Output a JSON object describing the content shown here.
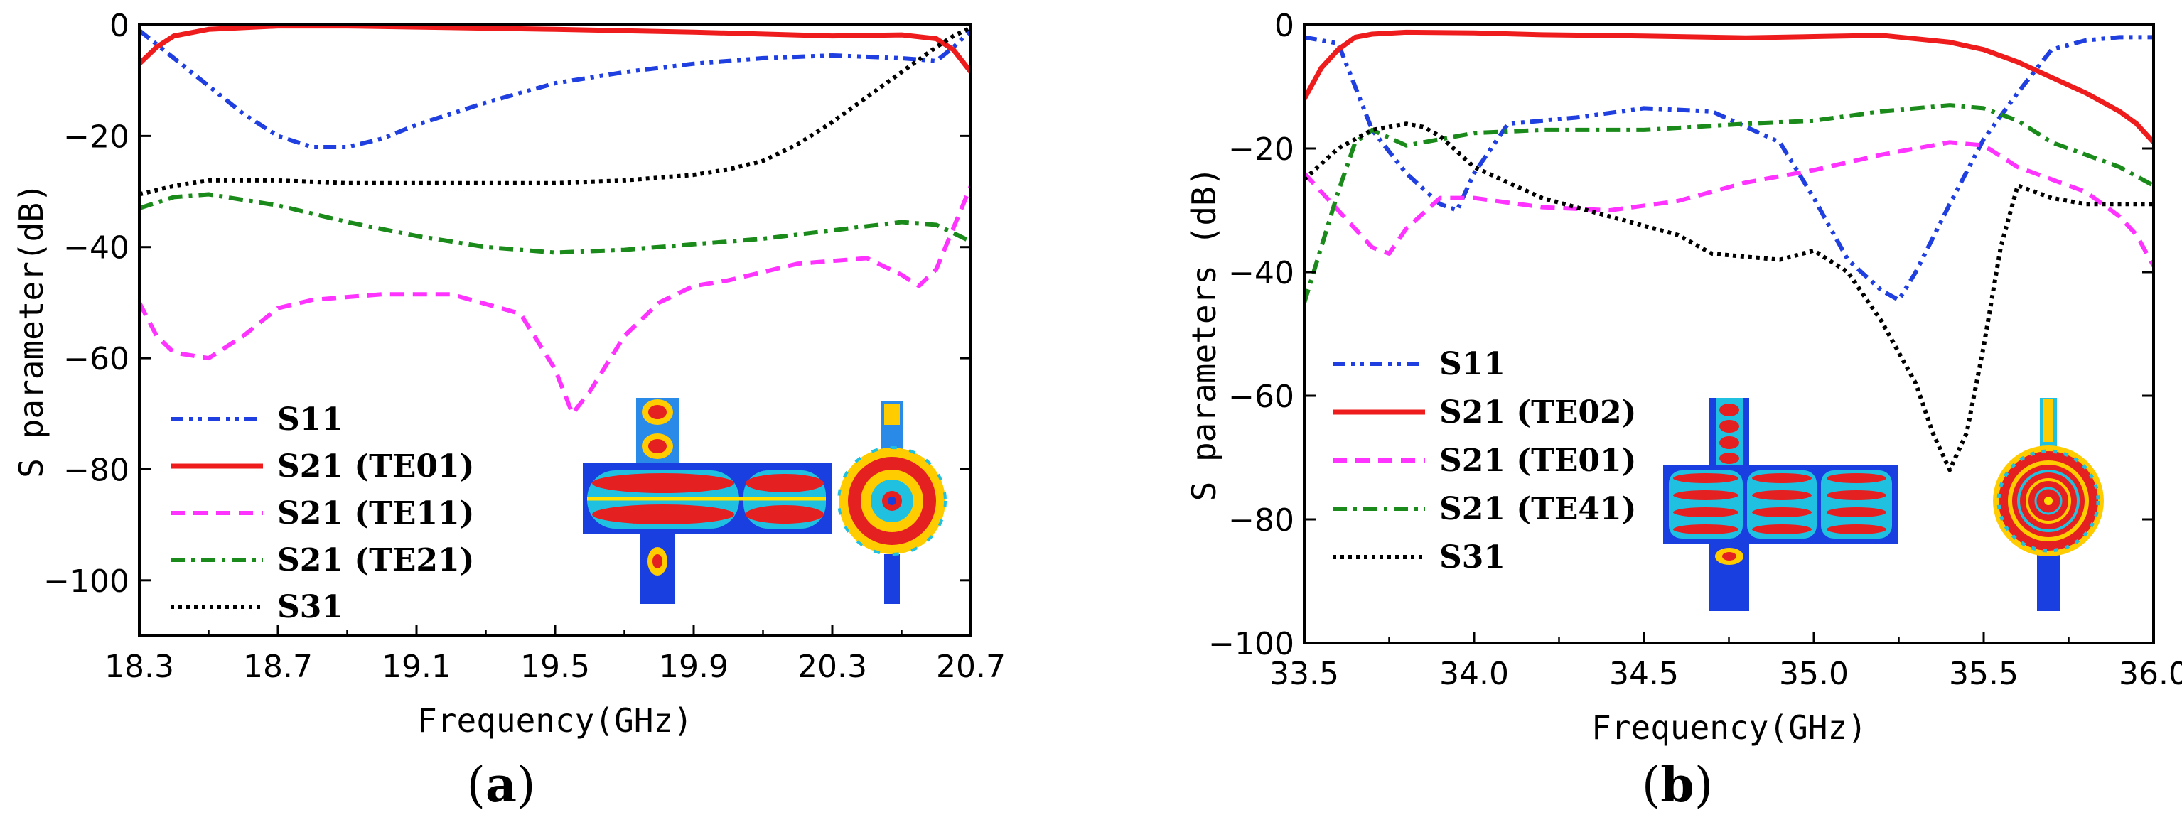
{
  "chart_data": [
    {
      "type": "line",
      "panel_label": "a",
      "xlabel": "Frequency(GHz)",
      "ylabel": "S parameter(dB)",
      "xlim": [
        18.3,
        20.7
      ],
      "ylim": [
        -110,
        0
      ],
      "xticks": [
        18.3,
        18.7,
        19.1,
        19.5,
        19.9,
        20.3,
        20.7
      ],
      "xtick_labels": [
        "18.3",
        "18.7",
        "19.1",
        "19.5",
        "19.9",
        "20.3",
        "20.7"
      ],
      "yticks": [
        0,
        -20,
        -40,
        -60,
        -80,
        -100
      ],
      "ytick_labels": [
        "0",
        "−20",
        "−40",
        "−60",
        "−80",
        "−100"
      ],
      "legend_position": "bottom-left",
      "series": [
        {
          "name": "S11",
          "color": "#1f3fe0",
          "dash": "dotdotdash",
          "x": [
            18.3,
            18.4,
            18.5,
            18.6,
            18.7,
            18.8,
            18.9,
            19.0,
            19.1,
            19.3,
            19.5,
            19.7,
            19.9,
            20.1,
            20.3,
            20.5,
            20.6,
            20.65,
            20.7
          ],
          "y": [
            -1,
            -6,
            -11,
            -16,
            -20,
            -22,
            -22,
            -20.5,
            -18,
            -14,
            -10.5,
            -8.5,
            -7,
            -6,
            -5.5,
            -6,
            -6.5,
            -4,
            -1
          ]
        },
        {
          "name": "S21 (TE01)",
          "color": "#ee1c1c",
          "dash": "solid",
          "x": [
            18.3,
            18.35,
            18.4,
            18.5,
            18.7,
            18.9,
            19.1,
            19.5,
            19.9,
            20.3,
            20.5,
            20.6,
            20.65,
            20.7
          ],
          "y": [
            -7,
            -4,
            -2,
            -0.8,
            -0.2,
            -0.2,
            -0.4,
            -0.8,
            -1.3,
            -2,
            -1.8,
            -2.5,
            -4.5,
            -8.5
          ]
        },
        {
          "name": "S21 (TE11)",
          "color": "#ff33ff",
          "dash": "dash",
          "x": [
            18.3,
            18.35,
            18.4,
            18.5,
            18.6,
            18.7,
            18.8,
            19.0,
            19.2,
            19.4,
            19.5,
            19.55,
            19.6,
            19.7,
            19.8,
            19.9,
            20.0,
            20.2,
            20.4,
            20.5,
            20.55,
            20.6,
            20.7
          ],
          "y": [
            -50,
            -56,
            -59,
            -60,
            -56,
            -51,
            -49.5,
            -48.5,
            -48.5,
            -52,
            -62,
            -70,
            -66,
            -56,
            -50,
            -47,
            -46,
            -43,
            -42,
            -45,
            -47,
            -44,
            -29
          ]
        },
        {
          "name": "S21 (TE21)",
          "color": "#1a8a1a",
          "dash": "dashdot",
          "x": [
            18.3,
            18.4,
            18.5,
            18.7,
            18.9,
            19.1,
            19.3,
            19.5,
            19.7,
            19.9,
            20.1,
            20.3,
            20.5,
            20.6,
            20.7
          ],
          "y": [
            -33,
            -31,
            -30.5,
            -32.5,
            -35.5,
            -38,
            -40,
            -41,
            -40.5,
            -39.5,
            -38.5,
            -37,
            -35.5,
            -36,
            -39
          ]
        },
        {
          "name": "S31",
          "color": "#000000",
          "dash": "dot",
          "x": [
            18.3,
            18.4,
            18.5,
            18.7,
            18.9,
            19.1,
            19.3,
            19.5,
            19.7,
            19.9,
            20.0,
            20.1,
            20.2,
            20.3,
            20.4,
            20.5,
            20.6,
            20.65,
            20.7
          ],
          "y": [
            -30.5,
            -29,
            -28,
            -28,
            -28.5,
            -28.5,
            -28.5,
            -28.5,
            -28,
            -27,
            -26,
            -24.5,
            -21.5,
            -17.5,
            -13,
            -8.5,
            -4,
            -2,
            -0.5
          ]
        }
      ]
    },
    {
      "type": "line",
      "panel_label": "b",
      "xlabel": "Frequency(GHz)",
      "ylabel": "S parameters (dB)",
      "xlim": [
        33.5,
        36.0
      ],
      "ylim": [
        -100,
        0
      ],
      "xticks": [
        33.5,
        34.0,
        34.5,
        35.0,
        35.5,
        36.0
      ],
      "xtick_labels": [
        "33.5",
        "34.0",
        "34.5",
        "35.0",
        "35.5",
        "36.0"
      ],
      "yticks": [
        0,
        -20,
        -40,
        -60,
        -80,
        -100
      ],
      "ytick_labels": [
        "0",
        "−20",
        "−40",
        "−60",
        "−80",
        "−100"
      ],
      "legend_position": "bottom-left",
      "series": [
        {
          "name": "S11",
          "color": "#1f3fe0",
          "dash": "dotdotdash",
          "x": [
            33.5,
            33.6,
            33.65,
            33.7,
            33.8,
            33.9,
            33.95,
            34.0,
            34.1,
            34.3,
            34.5,
            34.7,
            34.9,
            35.0,
            35.1,
            35.2,
            35.25,
            35.3,
            35.4,
            35.5,
            35.6,
            35.7,
            35.8,
            35.9,
            36.0
          ],
          "y": [
            -2,
            -3,
            -10,
            -17,
            -24,
            -29,
            -30,
            -24,
            -16,
            -15,
            -13.5,
            -14,
            -19,
            -28,
            -38,
            -43,
            -44.5,
            -40,
            -29,
            -18.5,
            -11,
            -4,
            -2.5,
            -2,
            -2
          ]
        },
        {
          "name": "S21 (TE02)",
          "color": "#ee1c1c",
          "dash": "solid",
          "x": [
            33.5,
            33.55,
            33.6,
            33.65,
            33.7,
            33.8,
            34.0,
            34.2,
            34.5,
            34.8,
            35.0,
            35.2,
            35.4,
            35.5,
            35.6,
            35.7,
            35.8,
            35.9,
            35.95,
            36.0
          ],
          "y": [
            -12,
            -7,
            -4,
            -2,
            -1.5,
            -1.2,
            -1.3,
            -1.6,
            -1.8,
            -2.1,
            -1.9,
            -1.7,
            -2.8,
            -4,
            -6,
            -8.5,
            -11,
            -14,
            -16,
            -19
          ]
        },
        {
          "name": "S21 (TE01)",
          "color": "#ff33ff",
          "dash": "dash",
          "x": [
            33.5,
            33.6,
            33.7,
            33.75,
            33.8,
            33.9,
            34.0,
            34.2,
            34.4,
            34.6,
            34.8,
            35.0,
            35.2,
            35.4,
            35.5,
            35.6,
            35.7,
            35.8,
            35.9,
            35.95,
            36.0
          ],
          "y": [
            -24,
            -30,
            -36,
            -37,
            -33,
            -28,
            -28,
            -29.5,
            -30,
            -28.5,
            -25.5,
            -23.5,
            -21,
            -19,
            -19.5,
            -23,
            -25,
            -27,
            -31,
            -34,
            -39
          ]
        },
        {
          "name": "S21 (TE41)",
          "color": "#1a8a1a",
          "dash": "dashdot",
          "x": [
            33.5,
            33.55,
            33.6,
            33.65,
            33.7,
            33.8,
            34.0,
            34.2,
            34.5,
            34.8,
            35.0,
            35.2,
            35.4,
            35.5,
            35.6,
            35.7,
            35.8,
            35.9,
            36.0
          ],
          "y": [
            -45,
            -36,
            -27,
            -19,
            -17,
            -19.5,
            -17.5,
            -17,
            -17,
            -16,
            -15.5,
            -14,
            -13,
            -13.5,
            -15.5,
            -19,
            -21,
            -23,
            -26
          ]
        },
        {
          "name": "S31",
          "color": "#000000",
          "dash": "dot",
          "x": [
            33.5,
            33.6,
            33.7,
            33.8,
            33.85,
            33.9,
            34.0,
            34.2,
            34.4,
            34.6,
            34.7,
            34.8,
            34.9,
            35.0,
            35.1,
            35.2,
            35.3,
            35.35,
            35.4,
            35.45,
            35.5,
            35.55,
            35.6,
            35.7,
            35.8,
            35.9,
            36.0
          ],
          "y": [
            -25,
            -20,
            -17,
            -16,
            -16.5,
            -18,
            -23,
            -28,
            -31,
            -34,
            -37,
            -37.5,
            -38,
            -36.5,
            -40,
            -48,
            -58,
            -66,
            -72,
            -66,
            -52,
            -36,
            -26,
            -28,
            -29,
            -29,
            -29
          ]
        }
      ]
    }
  ]
}
